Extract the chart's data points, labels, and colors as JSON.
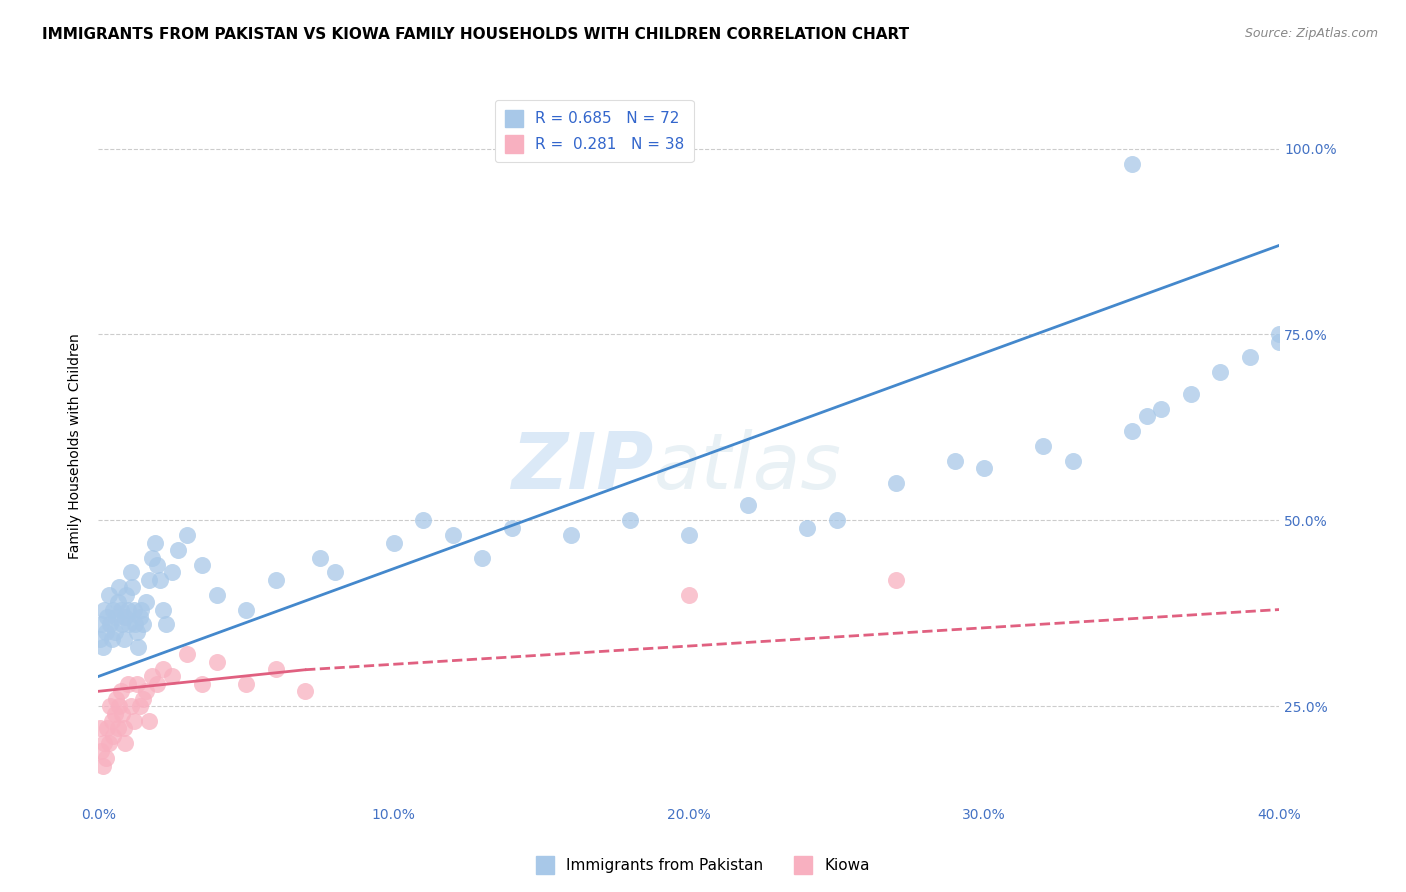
{
  "title": "IMMIGRANTS FROM PAKISTAN VS KIOWA FAMILY HOUSEHOLDS WITH CHILDREN CORRELATION CHART",
  "source": "Source: ZipAtlas.com",
  "ylabel": "Family Households with Children",
  "xlabel_ticks": [
    "0.0%",
    "10.0%",
    "20.0%",
    "30.0%",
    "40.0%"
  ],
  "ylabel_ticks": [
    "25.0%",
    "50.0%",
    "75.0%",
    "100.0%"
  ],
  "xlim": [
    0,
    40
  ],
  "ylim": [
    12,
    108
  ],
  "blue_color": "#a8c8e8",
  "blue_color_line": "#4488cc",
  "pink_color": "#f8b0c0",
  "pink_color_line": "#e06080",
  "watermark_zip": "ZIP",
  "watermark_atlas": "atlas",
  "legend_label_blue": "R = 0.685   N = 72",
  "legend_label_pink": "R =  0.281   N = 38",
  "legend_labels_bottom": [
    "Immigrants from Pakistan",
    "Kiowa"
  ],
  "blue_scatter_x": [
    0.05,
    0.1,
    0.15,
    0.2,
    0.25,
    0.3,
    0.35,
    0.4,
    0.45,
    0.5,
    0.55,
    0.6,
    0.65,
    0.7,
    0.75,
    0.8,
    0.85,
    0.9,
    0.95,
    1.0,
    1.05,
    1.1,
    1.15,
    1.2,
    1.25,
    1.3,
    1.35,
    1.4,
    1.45,
    1.5,
    1.6,
    1.7,
    1.8,
    1.9,
    2.0,
    2.1,
    2.2,
    2.3,
    2.5,
    2.7,
    3.0,
    3.5,
    4.0,
    5.0,
    6.0,
    7.5,
    8.0,
    10.0,
    11.0,
    12.0,
    13.0,
    14.0,
    16.0,
    18.0,
    20.0,
    22.0,
    24.0,
    25.0,
    27.0,
    29.0,
    30.0,
    32.0,
    33.0,
    35.0,
    35.5,
    36.0,
    37.0,
    38.0,
    39.0,
    40.0,
    40.0,
    35.0
  ],
  "blue_scatter_y": [
    34,
    36,
    33,
    38,
    35,
    37,
    40,
    36,
    34,
    38,
    35,
    37,
    39,
    41,
    38,
    36,
    34,
    37,
    40,
    38,
    36,
    43,
    41,
    38,
    36,
    35,
    33,
    37,
    38,
    36,
    39,
    42,
    45,
    47,
    44,
    42,
    38,
    36,
    43,
    46,
    48,
    44,
    40,
    38,
    42,
    45,
    43,
    47,
    50,
    48,
    45,
    49,
    48,
    50,
    48,
    52,
    49,
    50,
    55,
    58,
    57,
    60,
    58,
    62,
    64,
    65,
    67,
    70,
    72,
    74,
    75,
    98
  ],
  "pink_scatter_x": [
    0.05,
    0.1,
    0.15,
    0.2,
    0.25,
    0.3,
    0.35,
    0.4,
    0.45,
    0.5,
    0.55,
    0.6,
    0.65,
    0.7,
    0.75,
    0.8,
    0.85,
    0.9,
    1.0,
    1.1,
    1.2,
    1.3,
    1.4,
    1.5,
    1.6,
    1.7,
    1.8,
    2.0,
    2.2,
    2.5,
    3.0,
    3.5,
    4.0,
    5.0,
    6.0,
    7.0,
    20.0,
    27.0
  ],
  "pink_scatter_y": [
    22,
    19,
    17,
    20,
    18,
    22,
    20,
    25,
    23,
    21,
    24,
    26,
    22,
    25,
    27,
    24,
    22,
    20,
    28,
    25,
    23,
    28,
    25,
    26,
    27,
    23,
    29,
    28,
    30,
    29,
    32,
    28,
    31,
    28,
    30,
    27,
    40,
    42
  ],
  "blue_trend_x0": 0,
  "blue_trend_y0": 29,
  "blue_trend_x1": 40,
  "blue_trend_y1": 87,
  "pink_trend_x0": 0,
  "pink_trend_y0": 27,
  "pink_trend_x1": 40,
  "pink_trend_y1": 38,
  "pink_trend_solid_x1": 7,
  "pink_trend_solid_y1": 29.9,
  "background_color": "#ffffff",
  "grid_color": "#cccccc",
  "title_fontsize": 11,
  "tick_color": "#4472c4"
}
